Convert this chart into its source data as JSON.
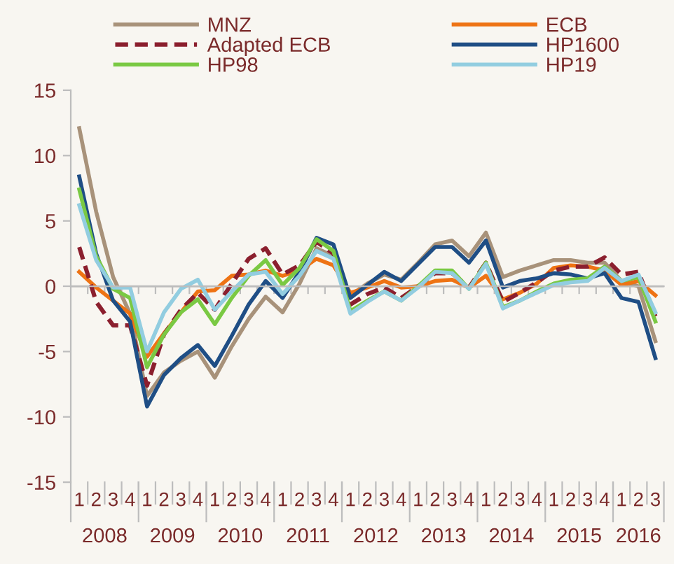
{
  "chart_data": {
    "type": "line",
    "categories": [
      "1",
      "2",
      "3",
      "4",
      "1",
      "2",
      "3",
      "4",
      "1",
      "2",
      "3",
      "4",
      "1",
      "2",
      "3",
      "4",
      "1",
      "2",
      "3",
      "4",
      "1",
      "2",
      "3",
      "4",
      "1",
      "2",
      "3",
      "4",
      "1",
      "2",
      "3",
      "4",
      "1",
      "2",
      "3"
    ],
    "annotations": [
      "2008",
      "2009",
      "2010",
      "2011",
      "2012",
      "2013",
      "2014",
      "2015",
      "2016"
    ],
    "ylim": [
      -15,
      15
    ],
    "yticks": [
      -15,
      -10,
      -5,
      0,
      5,
      10,
      15
    ],
    "grid": false,
    "legend": "top",
    "marker": "none",
    "ref_lines": [
      {
        "axis": "y",
        "value": 0,
        "color": "#bdbdbd"
      }
    ],
    "series": [
      {
        "name": "MNZ",
        "color": "#a8927a",
        "line_style": "solid",
        "values": [
          12.1,
          5.7,
          0.7,
          -2.1,
          -8.4,
          -6.6,
          -5.7,
          -5.0,
          -7.0,
          -4.6,
          -2.5,
          -0.8,
          -2.0,
          0.2,
          2.9,
          2.3,
          -0.7,
          0.2,
          0.9,
          0.5,
          1.8,
          3.2,
          3.5,
          2.3,
          4.1,
          0.7,
          1.2,
          1.6,
          2.0,
          2.0,
          1.8,
          1.8,
          0.4,
          0,
          -4.2
        ]
      },
      {
        "name": "ECB",
        "color": "#ee7314",
        "line_style": "solid",
        "values": [
          1.1,
          -0.1,
          -1.1,
          -2.1,
          -5.4,
          -3.6,
          -2.0,
          -0.4,
          -0.3,
          0.8,
          0.9,
          1.2,
          0.8,
          1.2,
          2.1,
          1.6,
          -0.5,
          -0.1,
          0.4,
          -0.1,
          0,
          0.4,
          0.5,
          -0.1,
          0.8,
          -1.0,
          -0.5,
          0.2,
          1.4,
          1.6,
          1.5,
          1.2,
          0.1,
          0.4,
          -0.7
        ]
      },
      {
        "name": "Adapted ECB",
        "color": "#8b1f2e",
        "line_style": "dashed",
        "values": [
          3.0,
          -1.2,
          -3.0,
          -3.0,
          -7.6,
          -3.7,
          -1.8,
          -0.5,
          -1.8,
          0.2,
          2.1,
          2.9,
          0.9,
          1.6,
          3.4,
          2.5,
          -1.4,
          -0.6,
          -0.1,
          -0.9,
          0,
          1.0,
          1.0,
          -0.1,
          1.8,
          -1.2,
          -0.5,
          0.3,
          1.2,
          1.5,
          1.5,
          2.2,
          0.9,
          1.1,
          -2.3
        ]
      },
      {
        "name": "HP1600",
        "color": "#1f4e85",
        "line_style": "solid",
        "values": [
          8.4,
          2.5,
          -1.1,
          -2.7,
          -9.2,
          -6.8,
          -5.5,
          -4.5,
          -6.1,
          -3.8,
          -1.4,
          0.4,
          -0.9,
          1.1,
          3.7,
          3.2,
          -0.9,
          0.1,
          1.1,
          0.4,
          1.7,
          3.0,
          3.0,
          1.8,
          3.5,
          -0.1,
          0.4,
          0.6,
          1.0,
          0.9,
          0.6,
          1.0,
          -0.9,
          -1.2,
          -5.5
        ]
      },
      {
        "name": "HP98",
        "color": "#7ac943",
        "line_style": "solid",
        "values": [
          7.4,
          2.3,
          -0.2,
          -0.9,
          -6.2,
          -3.7,
          -2.0,
          -1.0,
          -2.9,
          -0.9,
          0.8,
          2.0,
          0.1,
          1.4,
          3.6,
          2.7,
          -1.9,
          -1.1,
          -0.4,
          -1.1,
          0,
          1.2,
          1.2,
          -0.2,
          1.8,
          -1.6,
          -1.1,
          -0.4,
          0.2,
          0.5,
          0.6,
          1.5,
          0.4,
          0.7,
          -2.7
        ]
      },
      {
        "name": "HP19",
        "color": "#92cde0",
        "line_style": "solid",
        "values": [
          6.2,
          2.0,
          -0.1,
          -0.1,
          -5.0,
          -2.0,
          -0.2,
          0.5,
          -1.8,
          -0.4,
          0.9,
          1.1,
          -0.6,
          0.8,
          2.7,
          2.1,
          -2.1,
          -1.2,
          -0.4,
          -1.1,
          -0.1,
          1.1,
          1.0,
          -0.2,
          1.7,
          -1.7,
          -1.1,
          -0.5,
          0.1,
          0.3,
          0.4,
          1.4,
          0.4,
          0.9,
          -2.0
        ]
      }
    ]
  }
}
